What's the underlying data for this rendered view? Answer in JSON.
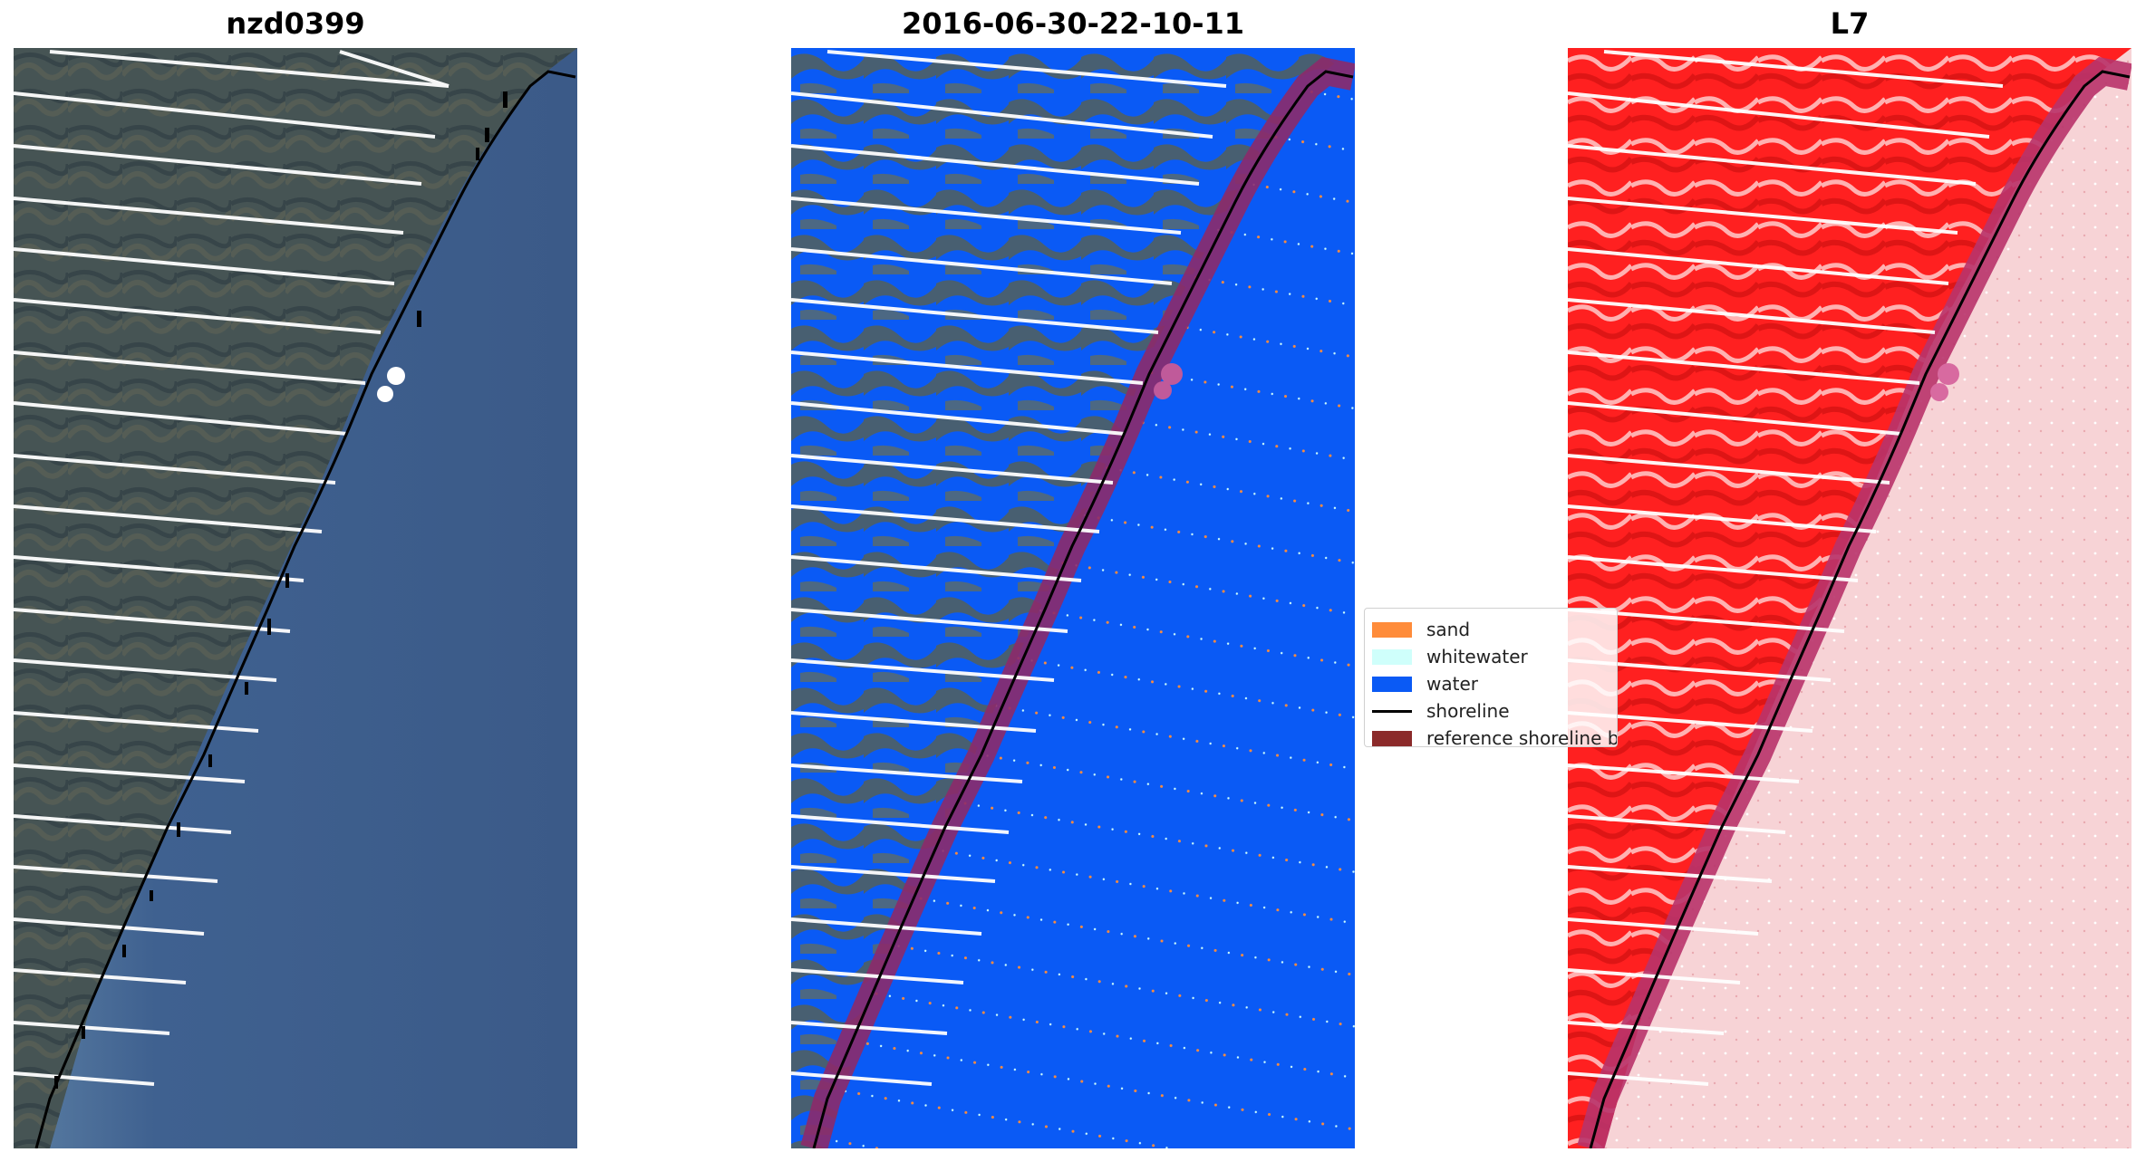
{
  "panels": [
    {
      "title": "nzd0399"
    },
    {
      "title": "2016-06-30-22-10-11"
    },
    {
      "title": "L7"
    }
  ],
  "legend": {
    "items": [
      {
        "label": "sand",
        "color": "#ff8c3a"
      },
      {
        "label": "whitewater",
        "color": "#cffffb"
      },
      {
        "label": "water",
        "color": "#0a5af5"
      },
      {
        "label": "shoreline",
        "color": "#000000"
      },
      {
        "label": "reference shoreline buffer",
        "color": "#8b2a2a"
      }
    ]
  },
  "colors": {
    "ocean": "#3e5e8c",
    "land": "#4d5a56",
    "water_class": "#0a5af5",
    "buffer": "#8c2a6a",
    "index_land": "#ff2020",
    "index_water": "#f7cfd3",
    "scan_gaps": "#ffffff",
    "shoreline": "#000000"
  }
}
